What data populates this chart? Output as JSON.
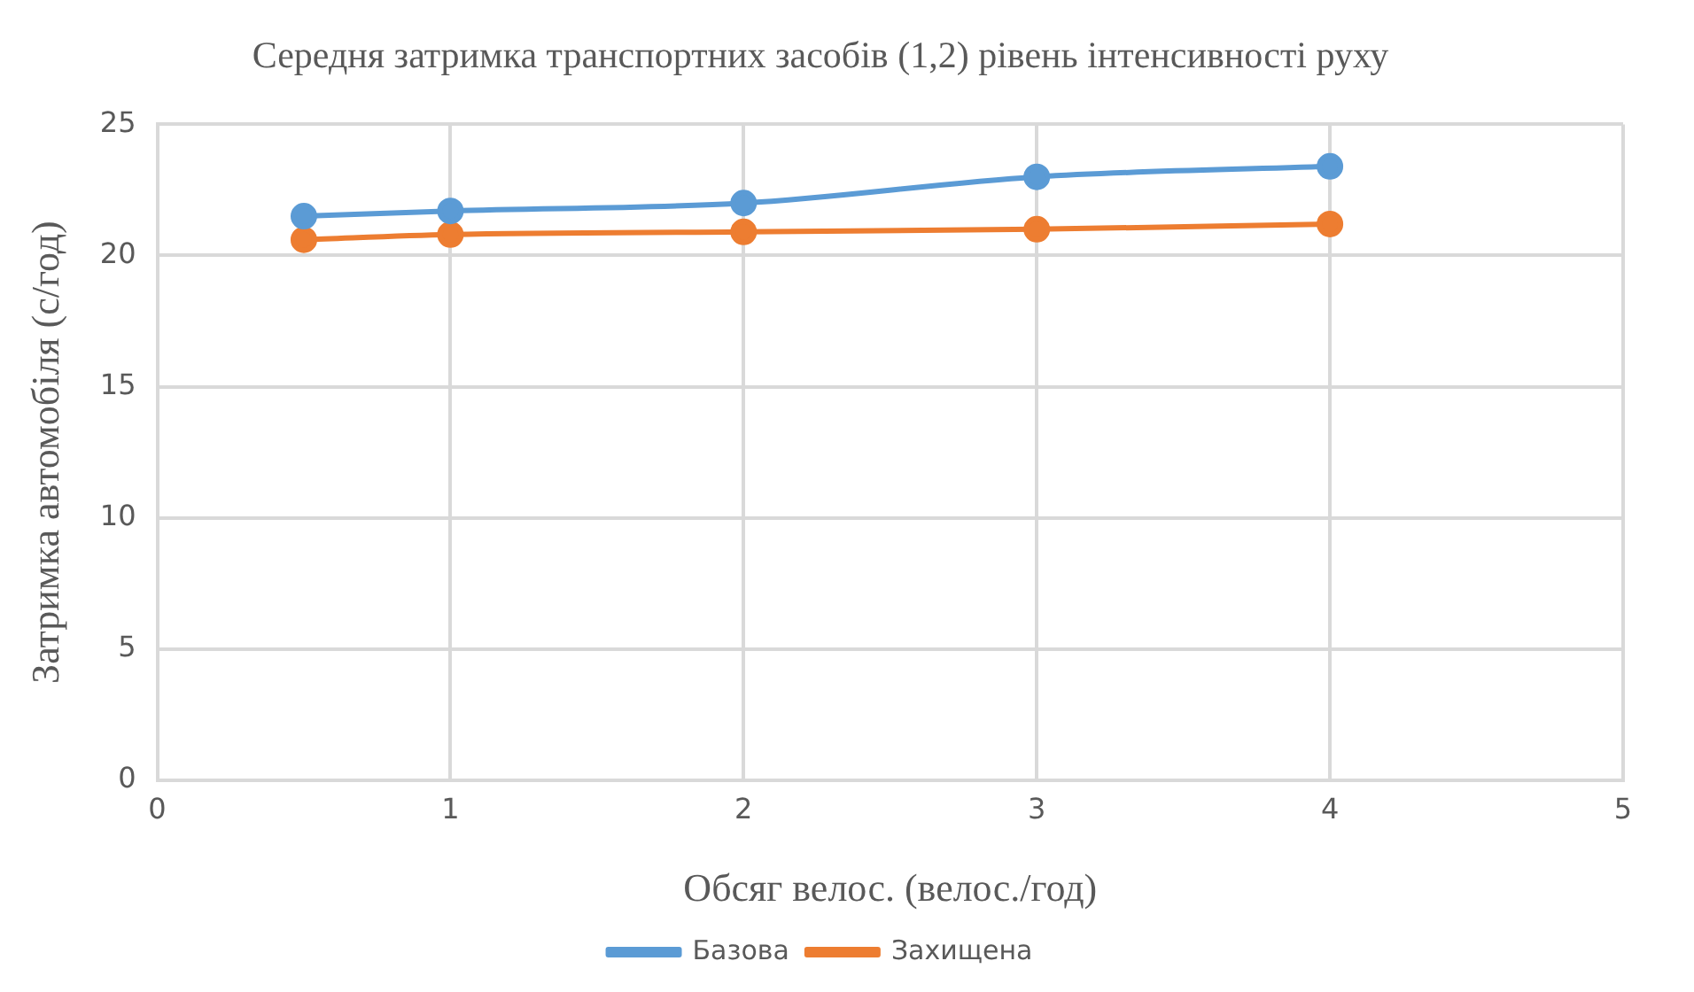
{
  "chart_data": {
    "type": "line",
    "title": "Середня затримка транспортних засобів (1,2) рівень інтенсивності руху",
    "xlabel": "Обсяг велос. (велос./год)",
    "ylabel": "Затримка автомобіля (с/год)",
    "x": [
      0.5,
      1,
      2,
      3,
      4
    ],
    "series": [
      {
        "name": "Базова",
        "color": "#5b9bd5",
        "values": [
          21.5,
          21.7,
          22.0,
          23.0,
          23.4
        ]
      },
      {
        "name": "Захищена",
        "color": "#ed7d31",
        "values": [
          20.6,
          20.8,
          20.9,
          21.0,
          21.2
        ]
      }
    ],
    "xlim": [
      0,
      5
    ],
    "xticks": [
      0,
      1,
      2,
      3,
      4,
      5
    ],
    "ylim": [
      0,
      25
    ],
    "yticks": [
      0,
      5,
      10,
      15,
      20,
      25
    ],
    "grid": true,
    "legend": "bottom",
    "marker": "circle",
    "line_style": "solid"
  }
}
